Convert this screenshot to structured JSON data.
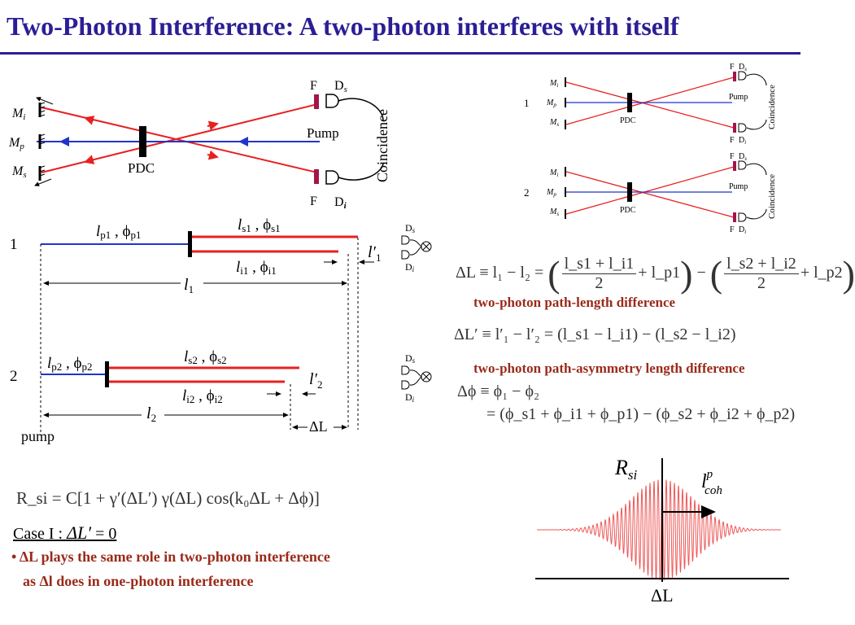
{
  "title": "Two-Photon Interference: A two-photon interferes with itself",
  "colors": {
    "title": "#2b1e95",
    "beam_red": "#e82020",
    "pump_blue": "#2233cc",
    "caption": "#9a2a1a"
  },
  "setup_diagram": {
    "mirror_labels": [
      "M",
      "M",
      "M"
    ],
    "mirror_subs": [
      "i",
      "p",
      "s"
    ],
    "pdc": "PDC",
    "pump": "Pump",
    "filter_top": "F",
    "filter_bottom": "F",
    "detector_top": "D",
    "detector_top_sub": "s",
    "detector_bottom": "D",
    "detector_bottom_sub": "i",
    "coincidence": "Coincidence"
  },
  "small_diagrams": {
    "labels": [
      "1",
      "2"
    ],
    "mirror_labels": [
      "M",
      "M",
      "M"
    ],
    "mirror_subs": [
      "i",
      "p",
      "s"
    ],
    "pdc": "PDC",
    "pump": "Pump",
    "filter": "F",
    "ds": "D",
    "ds_sub": "s",
    "di": "D",
    "di_sub": "i",
    "coincidence": "Coincidence"
  },
  "path_diagram": {
    "row1_number": "1",
    "row2_number": "2",
    "row1": {
      "lp": "l",
      "lp_sub": "p1",
      "phip": "ϕ",
      "phip_sub": "p1",
      "ls": "l",
      "ls_sub": "s1",
      "phis": "ϕ",
      "phis_sub": "s1",
      "li": "l",
      "li_sub": "i1",
      "phii": "ϕ",
      "phii_sub": "i1",
      "lprime": "l′",
      "lprime_sub": "1",
      "l": "l",
      "l_sub": "1"
    },
    "row2": {
      "lp": "l",
      "lp_sub": "p2",
      "phip": "ϕ",
      "phip_sub": "p2",
      "ls": "l",
      "ls_sub": "s2",
      "phis": "ϕ",
      "phis_sub": "s2",
      "li": "l",
      "li_sub": "i2",
      "phii": "ϕ",
      "phii_sub": "i2",
      "lprime": "l′",
      "lprime_sub": "2",
      "l": "l",
      "l_sub": "2"
    },
    "delta_L": "ΔL",
    "pump": "pump",
    "det_s": "D",
    "det_s_sub": "s",
    "det_i": "D",
    "det_i_sub": "i"
  },
  "equations": {
    "eq1_lhs": "ΔL ≡ l₁ − l₂ =",
    "eq1_t1_num": "l_s1 + l_i1",
    "eq1_t1_den": "2",
    "eq1_t1_tail": "+ l_p1",
    "eq1_minus": "−",
    "eq1_t2_num": "l_s2 + l_i2",
    "eq1_t2_den": "2",
    "eq1_t2_tail": "+ l_p2",
    "eq1_caption": "two-photon path-length difference",
    "eq2": "ΔL′ ≡ l′₁ − l′₂ = (l_s1 − l_i1) − (l_s2 − l_i2)",
    "eq2_caption": "two-photon path-asymmetry length difference",
    "eq3_line1": "Δϕ ≡ ϕ₁ − ϕ₂",
    "eq3_line2": "= (ϕ_s1 + ϕ_i1 + ϕ_p1) − (ϕ_s2 + ϕ_i2 + ϕ_p2)",
    "rate": "R_si = C[1 + γ′(ΔL′) γ(ΔL) cos(k₀ΔL + Δϕ)]"
  },
  "case": {
    "label": "Case I :",
    "expr": "ΔL′",
    "value": "= 0"
  },
  "bullet": {
    "marker": "•",
    "line1": "ΔL plays the same role in two-photon interference",
    "line2": "as Δl does in one-photon interference"
  },
  "plot": {
    "ylabel": "R",
    "ylabel_sub": "si",
    "xlabel": "ΔL",
    "coh_label": "l",
    "coh_sup": "p",
    "coh_sub": "coh"
  },
  "chart_data": {
    "type": "line",
    "title": "",
    "xlabel": "ΔL",
    "ylabel": "R_si",
    "shape": "oscillating interference fringes under a Gaussian envelope centered at ΔL = 0",
    "envelope_halfwidth_label": "l^p_coh",
    "fringe_cycles": 60,
    "grid": false
  }
}
